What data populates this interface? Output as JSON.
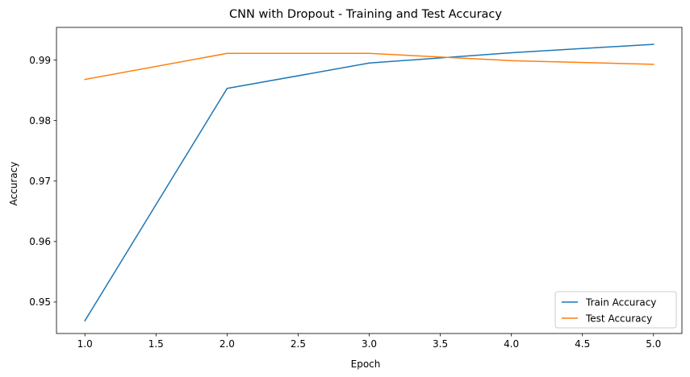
{
  "chart_data": {
    "type": "line",
    "title": "CNN with Dropout - Training and Test Accuracy",
    "xlabel": "Epoch",
    "ylabel": "Accuracy",
    "xlim": [
      0.8,
      5.2
    ],
    "ylim": [
      0.9448,
      0.9954
    ],
    "xticks": [
      1.0,
      1.5,
      2.0,
      2.5,
      3.0,
      3.5,
      4.0,
      4.5,
      5.0
    ],
    "xtick_labels": [
      "1.0",
      "1.5",
      "2.0",
      "2.5",
      "3.0",
      "3.5",
      "4.0",
      "4.5",
      "5.0"
    ],
    "yticks": [
      0.95,
      0.96,
      0.97,
      0.98,
      0.99
    ],
    "ytick_labels": [
      "0.95",
      "0.96",
      "0.97",
      "0.98",
      "0.99"
    ],
    "grid": false,
    "legend_position": "lower-right",
    "x": [
      1,
      2,
      3,
      4,
      5
    ],
    "series": [
      {
        "name": "Train Accuracy",
        "color": "#1f77b4",
        "values": [
          0.9469,
          0.9853,
          0.9895,
          0.9912,
          0.9926
        ]
      },
      {
        "name": "Test Accuracy",
        "color": "#ff7f0e",
        "values": [
          0.9868,
          0.9911,
          0.9911,
          0.9899,
          0.9893
        ]
      }
    ]
  }
}
